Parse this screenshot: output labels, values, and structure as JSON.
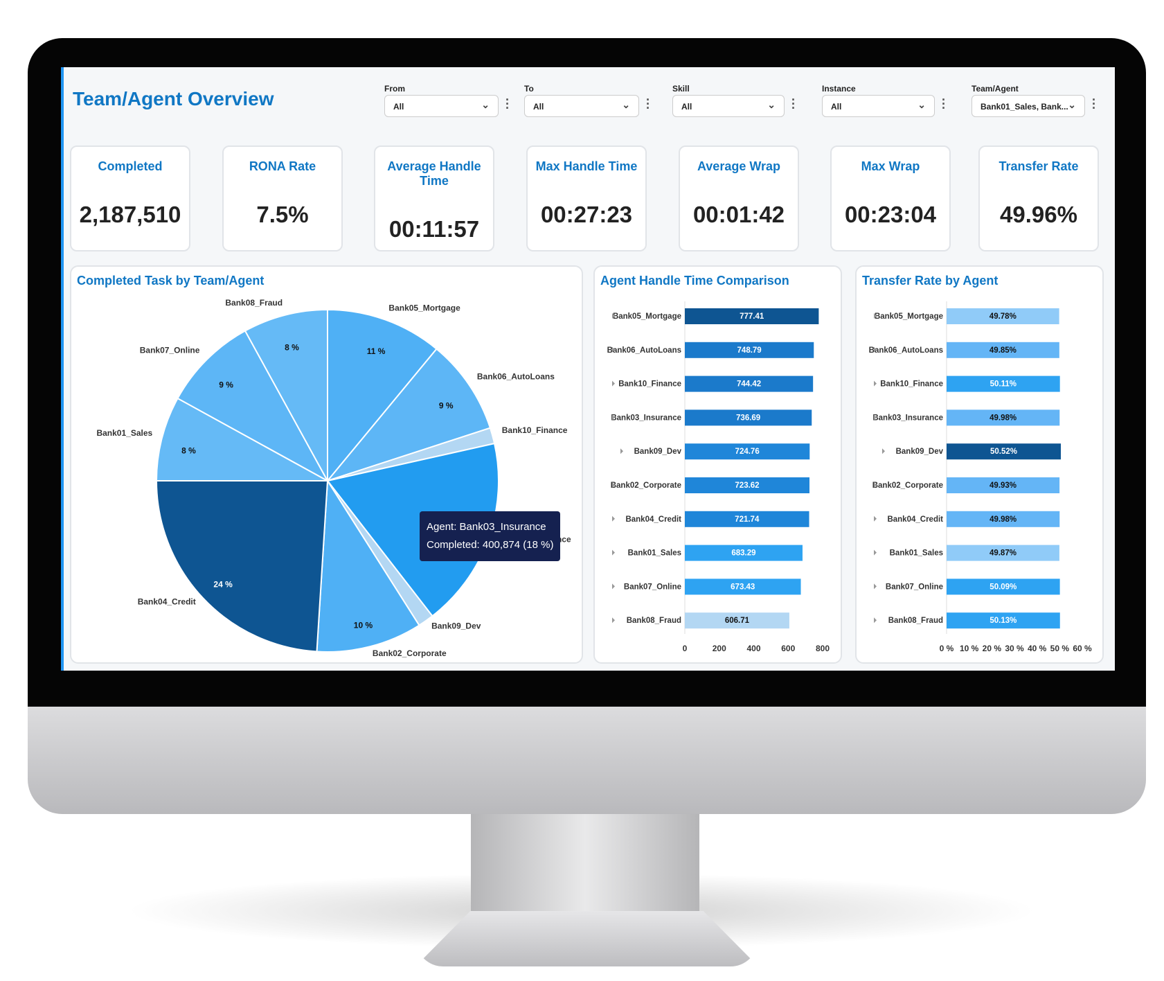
{
  "header": {
    "title": "Team/Agent Overview"
  },
  "filters": [
    {
      "label": "From",
      "value": "All"
    },
    {
      "label": "To",
      "value": "All"
    },
    {
      "label": "Skill",
      "value": "All"
    },
    {
      "label": "Instance",
      "value": "All"
    },
    {
      "label": "Team/Agent",
      "value": "Bank01_Sales, Bank..."
    }
  ],
  "kpis": [
    {
      "label": "Completed",
      "value": "2,187,510"
    },
    {
      "label": "RONA Rate",
      "value": "7.5%"
    },
    {
      "label": "Average Handle Time",
      "value": "00:11:57"
    },
    {
      "label": "Max Handle Time",
      "value": "00:27:23"
    },
    {
      "label": "Average Wrap",
      "value": "00:01:42"
    },
    {
      "label": "Max Wrap",
      "value": "00:23:04"
    },
    {
      "label": "Transfer Rate",
      "value": "49.96%"
    }
  ],
  "tooltip": {
    "line1": "Agent: Bank03_Insurance",
    "line2": "Completed: 400,874 (18 %)"
  },
  "chart_data": [
    {
      "type": "pie",
      "title": "Completed Task by Team/Agent",
      "start": "top",
      "direction": "clockwise",
      "slices": [
        {
          "label": "Bank05_Mortgage",
          "value": 11,
          "pct_label": "11 %",
          "color": "#4fb0f5"
        },
        {
          "label": "Bank06_AutoLoans",
          "value": 9,
          "pct_label": "9 %",
          "color": "#5db6f6"
        },
        {
          "label": "Bank10_Finance",
          "value": 1.5,
          "pct_label": "",
          "color": "#b3d7f3"
        },
        {
          "label": "Bank03_Insurance",
          "value": 18,
          "pct_label": "",
          "color": "#229cf0"
        },
        {
          "label": "Bank09_Dev",
          "value": 1.5,
          "pct_label": "",
          "color": "#b3d7f3"
        },
        {
          "label": "Bank02_Corporate",
          "value": 10,
          "pct_label": "10 %",
          "color": "#4fb0f5"
        },
        {
          "label": "Bank04_Credit",
          "value": 24,
          "pct_label": "24 %",
          "color": "#0e5592"
        },
        {
          "label": "Bank01_Sales",
          "value": 8,
          "pct_label": "8 %",
          "color": "#65baf6"
        },
        {
          "label": "Bank07_Online",
          "value": 9,
          "pct_label": "9 %",
          "color": "#5db6f6"
        },
        {
          "label": "Bank08_Fraud",
          "value": 8,
          "pct_label": "8 %",
          "color": "#65baf6"
        }
      ]
    },
    {
      "type": "bar",
      "orientation": "horizontal",
      "title": "Agent Handle Time Comparison",
      "xlim": [
        0,
        800
      ],
      "xticks": [
        0,
        200,
        400,
        600,
        800
      ],
      "categories": [
        "Bank05_Mortgage",
        "Bank06_AutoLoans",
        "Bank10_Finance",
        "Bank03_Insurance",
        "Bank09_Dev",
        "Bank02_Corporate",
        "Bank04_Credit",
        "Bank01_Sales",
        "Bank07_Online",
        "Bank08_Fraud"
      ],
      "values": [
        777.41,
        748.79,
        744.42,
        736.69,
        724.76,
        723.62,
        721.74,
        683.29,
        673.43,
        606.71
      ],
      "colors": [
        "#0e5592",
        "#1b7acb",
        "#1b7acb",
        "#1b7acb",
        "#1f86d9",
        "#1f86d9",
        "#1f86d9",
        "#2ea3f2",
        "#2ea3f2",
        "#b3d7f3"
      ]
    },
    {
      "type": "bar",
      "orientation": "horizontal",
      "title": "Transfer Rate by Agent",
      "xlim": [
        0,
        60
      ],
      "xticks": [
        "0 %",
        "10 %",
        "20 %",
        "30 %",
        "40 %",
        "50 %",
        "60 %"
      ],
      "categories": [
        "Bank05_Mortgage",
        "Bank06_AutoLoans",
        "Bank10_Finance",
        "Bank03_Insurance",
        "Bank09_Dev",
        "Bank02_Corporate",
        "Bank04_Credit",
        "Bank01_Sales",
        "Bank07_Online",
        "Bank08_Fraud"
      ],
      "values": [
        49.78,
        49.85,
        50.11,
        49.98,
        50.52,
        49.93,
        49.98,
        49.87,
        50.09,
        50.13
      ],
      "value_labels": [
        "49.78%",
        "49.85%",
        "50.11%",
        "49.98%",
        "50.52%",
        "49.93%",
        "49.98%",
        "49.87%",
        "50.09%",
        "50.13%"
      ],
      "colors": [
        "#90cbf8",
        "#64b5f6",
        "#2ea3f2",
        "#64b5f6",
        "#0e5592",
        "#64b5f6",
        "#64b5f6",
        "#90cbf8",
        "#2ea3f2",
        "#2ea3f2"
      ]
    }
  ]
}
